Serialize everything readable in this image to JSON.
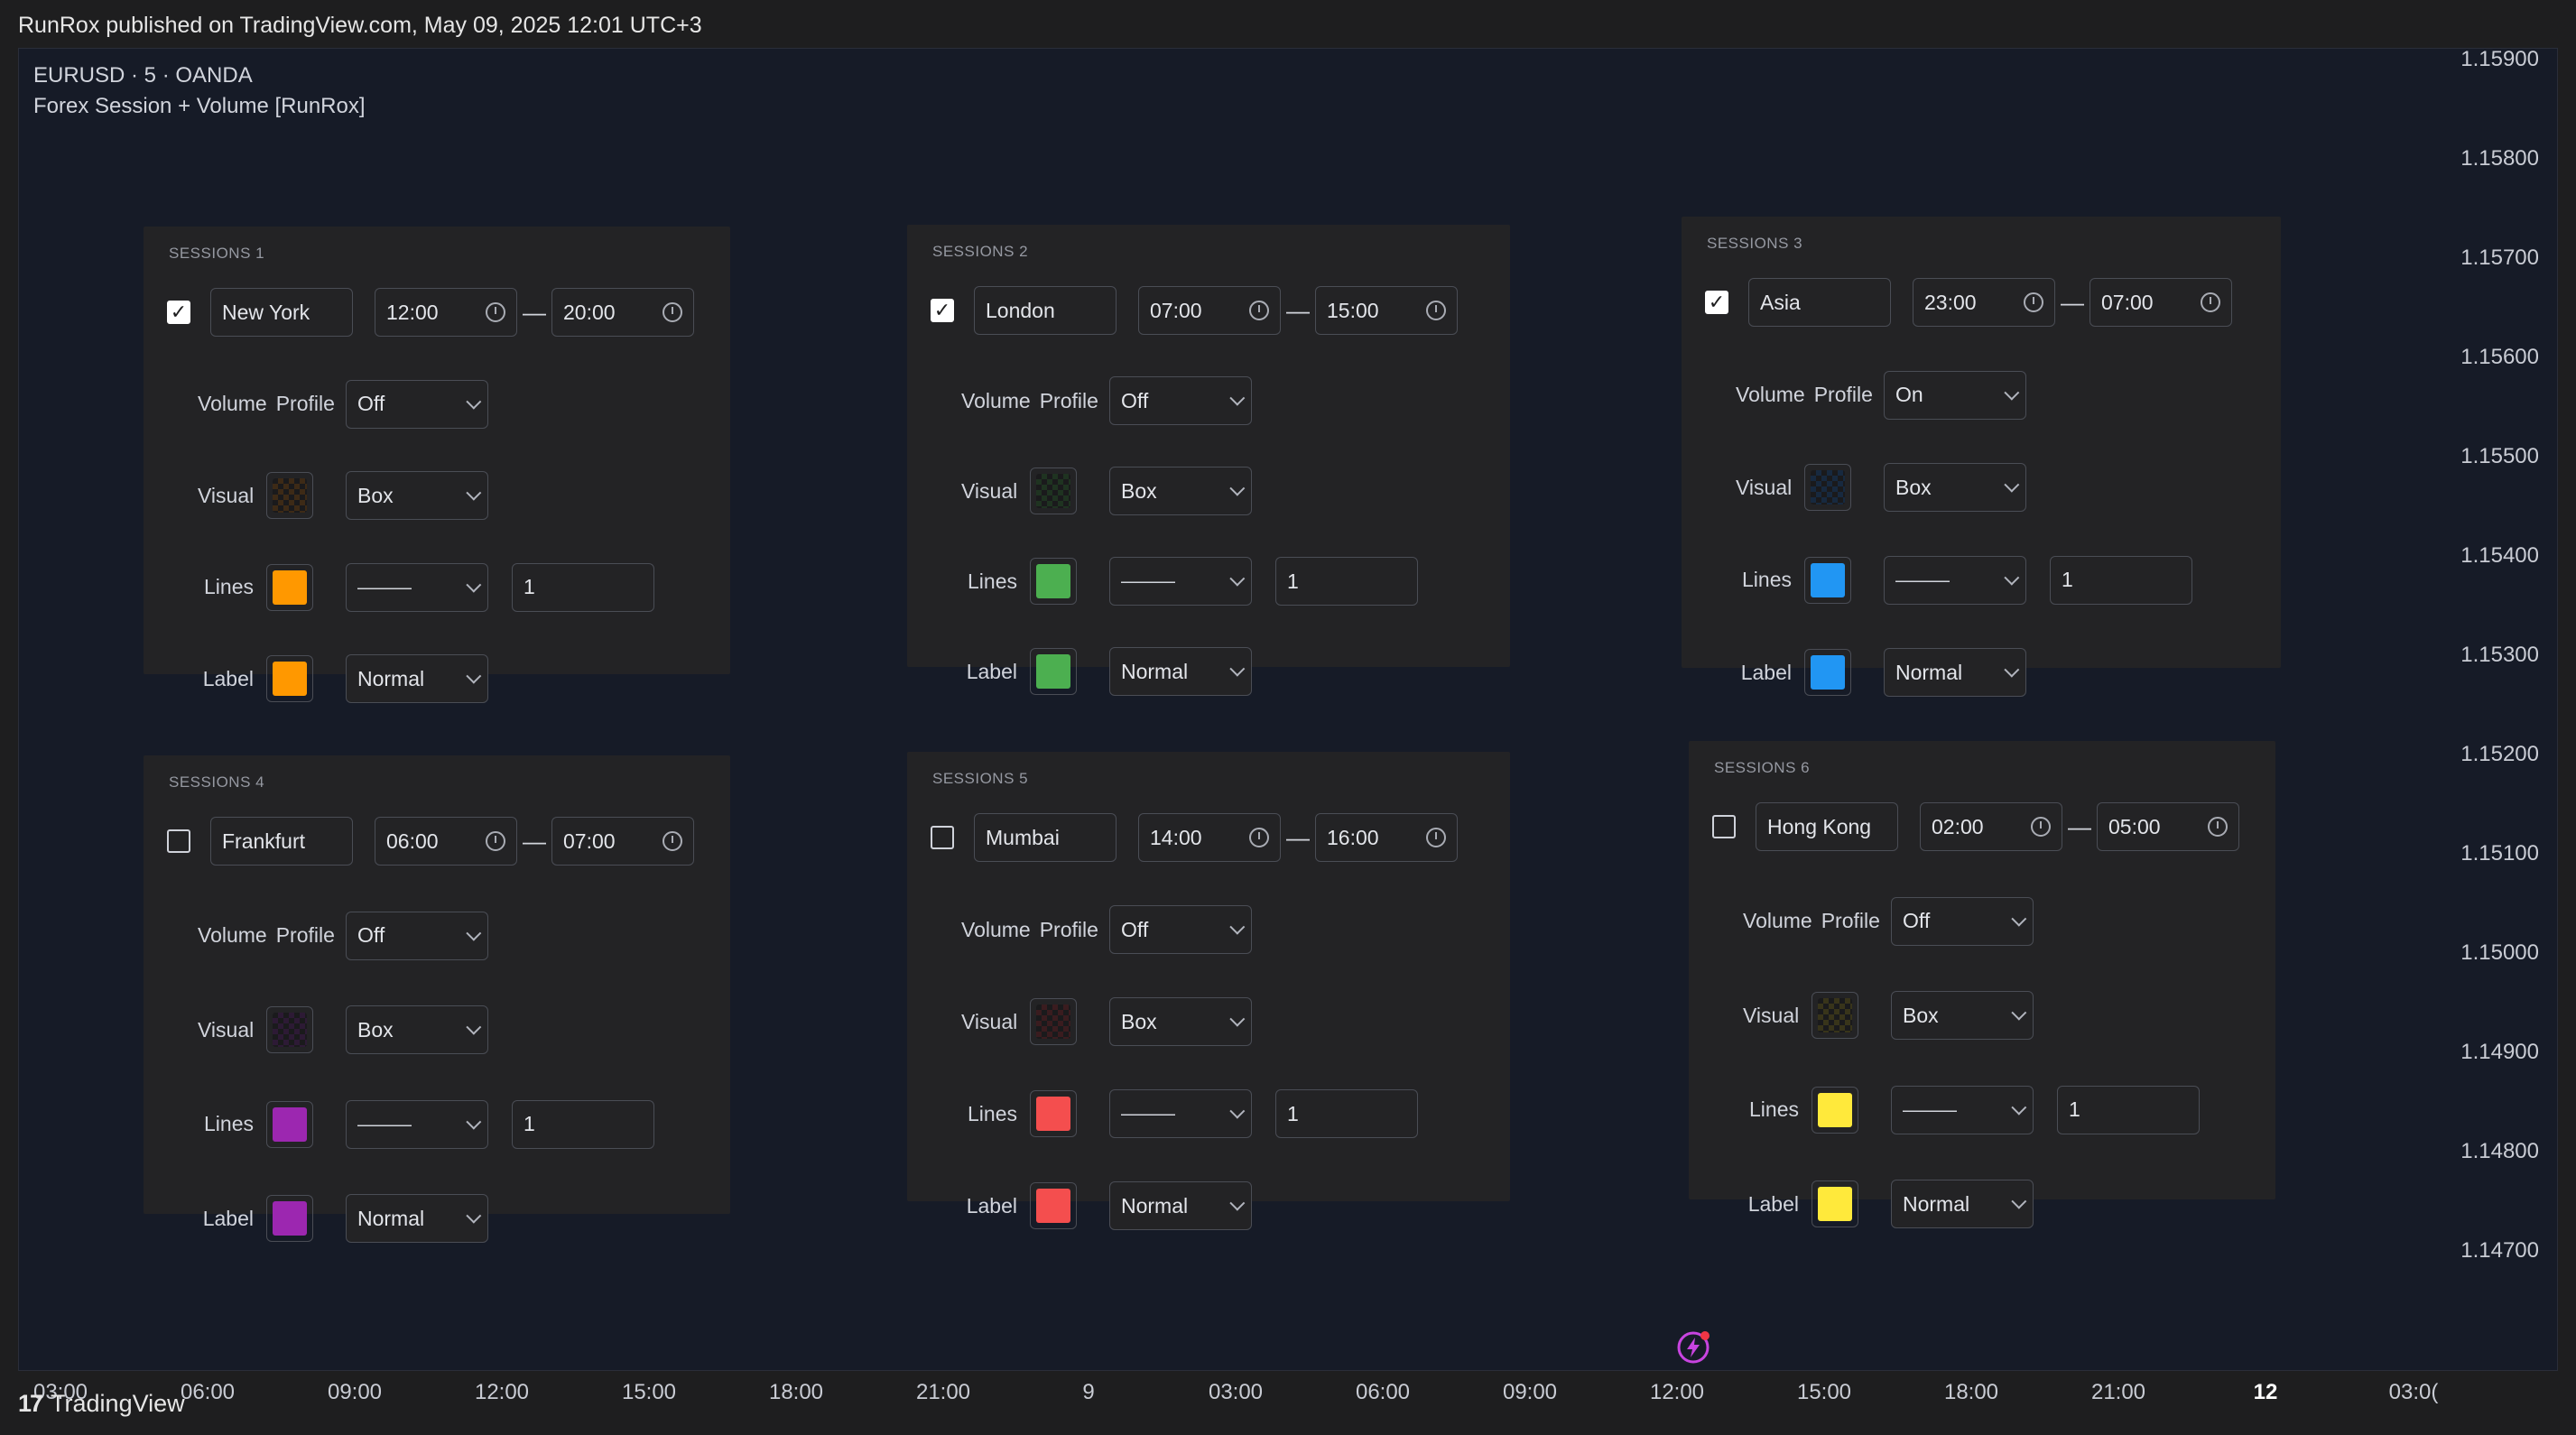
{
  "topbar": {
    "text": "RunRox published on TradingView.com, May 09, 2025 12:01 UTC+3"
  },
  "chart": {
    "symbol": "EURUSD · 5 · OANDA",
    "indicator": "Forex Session + Volume [RunRox]",
    "price_ticks": [
      "1.15900",
      "1.15800",
      "1.15700",
      "1.15600",
      "1.15500",
      "1.15400",
      "1.15300",
      "1.15200",
      "1.15100",
      "1.15000",
      "1.14900",
      "1.14800",
      "1.14700"
    ],
    "time_ticks": [
      "03:00",
      "06:00",
      "09:00",
      "12:00",
      "15:00",
      "18:00",
      "21:00",
      "9",
      "03:00",
      "06:00",
      "09:00",
      "12:00",
      "15:00",
      "18:00",
      "21:00",
      "12",
      "03:0("
    ]
  },
  "labels": {
    "volume": "Volume",
    "profile": "Profile",
    "visual": "Visual",
    "lines": "Lines",
    "label": "Label",
    "dash": "—",
    "line_style": "———"
  },
  "sessions": [
    {
      "title": "SESSIONS 1",
      "checked": true,
      "name": "New York",
      "start": "12:00",
      "end": "20:00",
      "volume_profile": "Off",
      "visual": "Box",
      "width": "1",
      "label_size": "Normal",
      "color": "#ff9800",
      "dark": "#3d2a16"
    },
    {
      "title": "SESSIONS 2",
      "checked": true,
      "name": "London",
      "start": "07:00",
      "end": "15:00",
      "volume_profile": "Off",
      "visual": "Box",
      "width": "1",
      "label_size": "Normal",
      "color": "#4caf50",
      "dark": "#1f3321"
    },
    {
      "title": "SESSIONS 3",
      "checked": true,
      "name": "Asia",
      "start": "23:00",
      "end": "07:00",
      "volume_profile": "On",
      "visual": "Box",
      "width": "1",
      "label_size": "Normal",
      "color": "#2196f3",
      "dark": "#17293f"
    },
    {
      "title": "SESSIONS 4",
      "checked": false,
      "name": "Frankfurt",
      "start": "06:00",
      "end": "07:00",
      "volume_profile": "Off",
      "visual": "Box",
      "width": "1",
      "label_size": "Normal",
      "color": "#9c27b0",
      "dark": "#2d1a35"
    },
    {
      "title": "SESSIONS 5",
      "checked": false,
      "name": "Mumbai",
      "start": "14:00",
      "end": "16:00",
      "volume_profile": "Off",
      "visual": "Box",
      "width": "1",
      "label_size": "Normal",
      "color": "#f44e4e",
      "dark": "#3a1c1f"
    },
    {
      "title": "SESSIONS 6",
      "checked": false,
      "name": "Hong Kong",
      "start": "02:00",
      "end": "05:00",
      "volume_profile": "Off",
      "visual": "Box",
      "width": "1",
      "label_size": "Normal",
      "color": "#ffe93b",
      "dark": "#38341a"
    }
  ],
  "footer": {
    "brand": "TradingView",
    "logo": "17"
  }
}
